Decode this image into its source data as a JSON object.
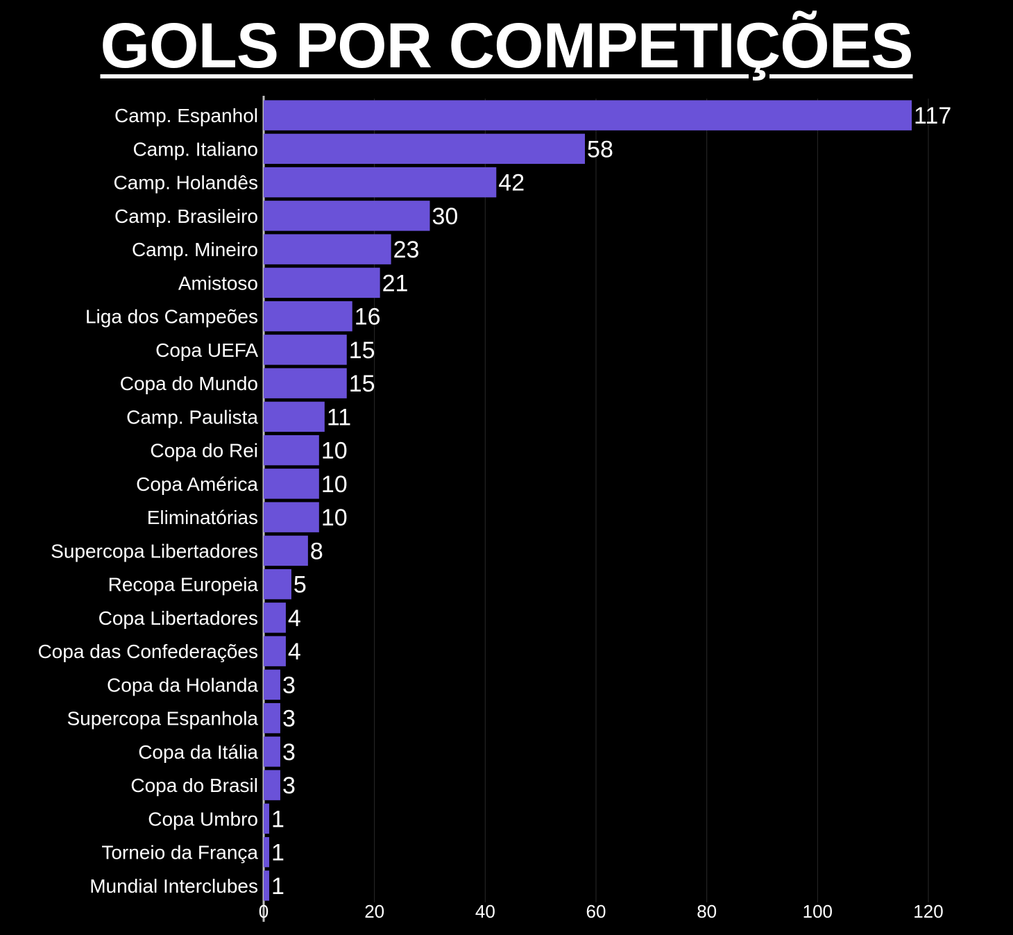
{
  "title": "GOLS POR COMPETIÇÕES",
  "colors": {
    "background": "#000000",
    "bar": "#6a52d8",
    "text": "#ffffff",
    "grid": "#2a2a2a",
    "axis": "#bdbdbd"
  },
  "chart_data": {
    "type": "bar",
    "orientation": "horizontal",
    "title": "GOLS POR COMPETIÇÕES",
    "xlabel": "",
    "ylabel": "",
    "xlim": [
      0,
      120
    ],
    "xticks": [
      0,
      20,
      40,
      60,
      80,
      100,
      120
    ],
    "grid": true,
    "categories": [
      "Camp. Espanhol",
      "Camp. Italiano",
      "Camp. Holandês",
      "Camp. Brasileiro",
      "Camp. Mineiro",
      "Amistoso",
      "Liga dos Campeões",
      "Copa UEFA",
      "Copa do Mundo",
      "Camp. Paulista",
      "Copa do Rei",
      "Copa América",
      "Eliminatórias",
      "Supercopa Libertadores",
      "Recopa Europeia",
      "Copa Libertadores",
      "Copa das Confederações",
      "Copa da Holanda",
      "Supercopa Espanhola",
      "Copa da Itália",
      "Copa do Brasil",
      "Copa Umbro",
      "Torneio da França",
      "Mundial Interclubes"
    ],
    "values": [
      117,
      58,
      42,
      30,
      23,
      21,
      16,
      15,
      15,
      11,
      10,
      10,
      10,
      8,
      5,
      4,
      4,
      3,
      3,
      3,
      3,
      1,
      1,
      1
    ]
  }
}
